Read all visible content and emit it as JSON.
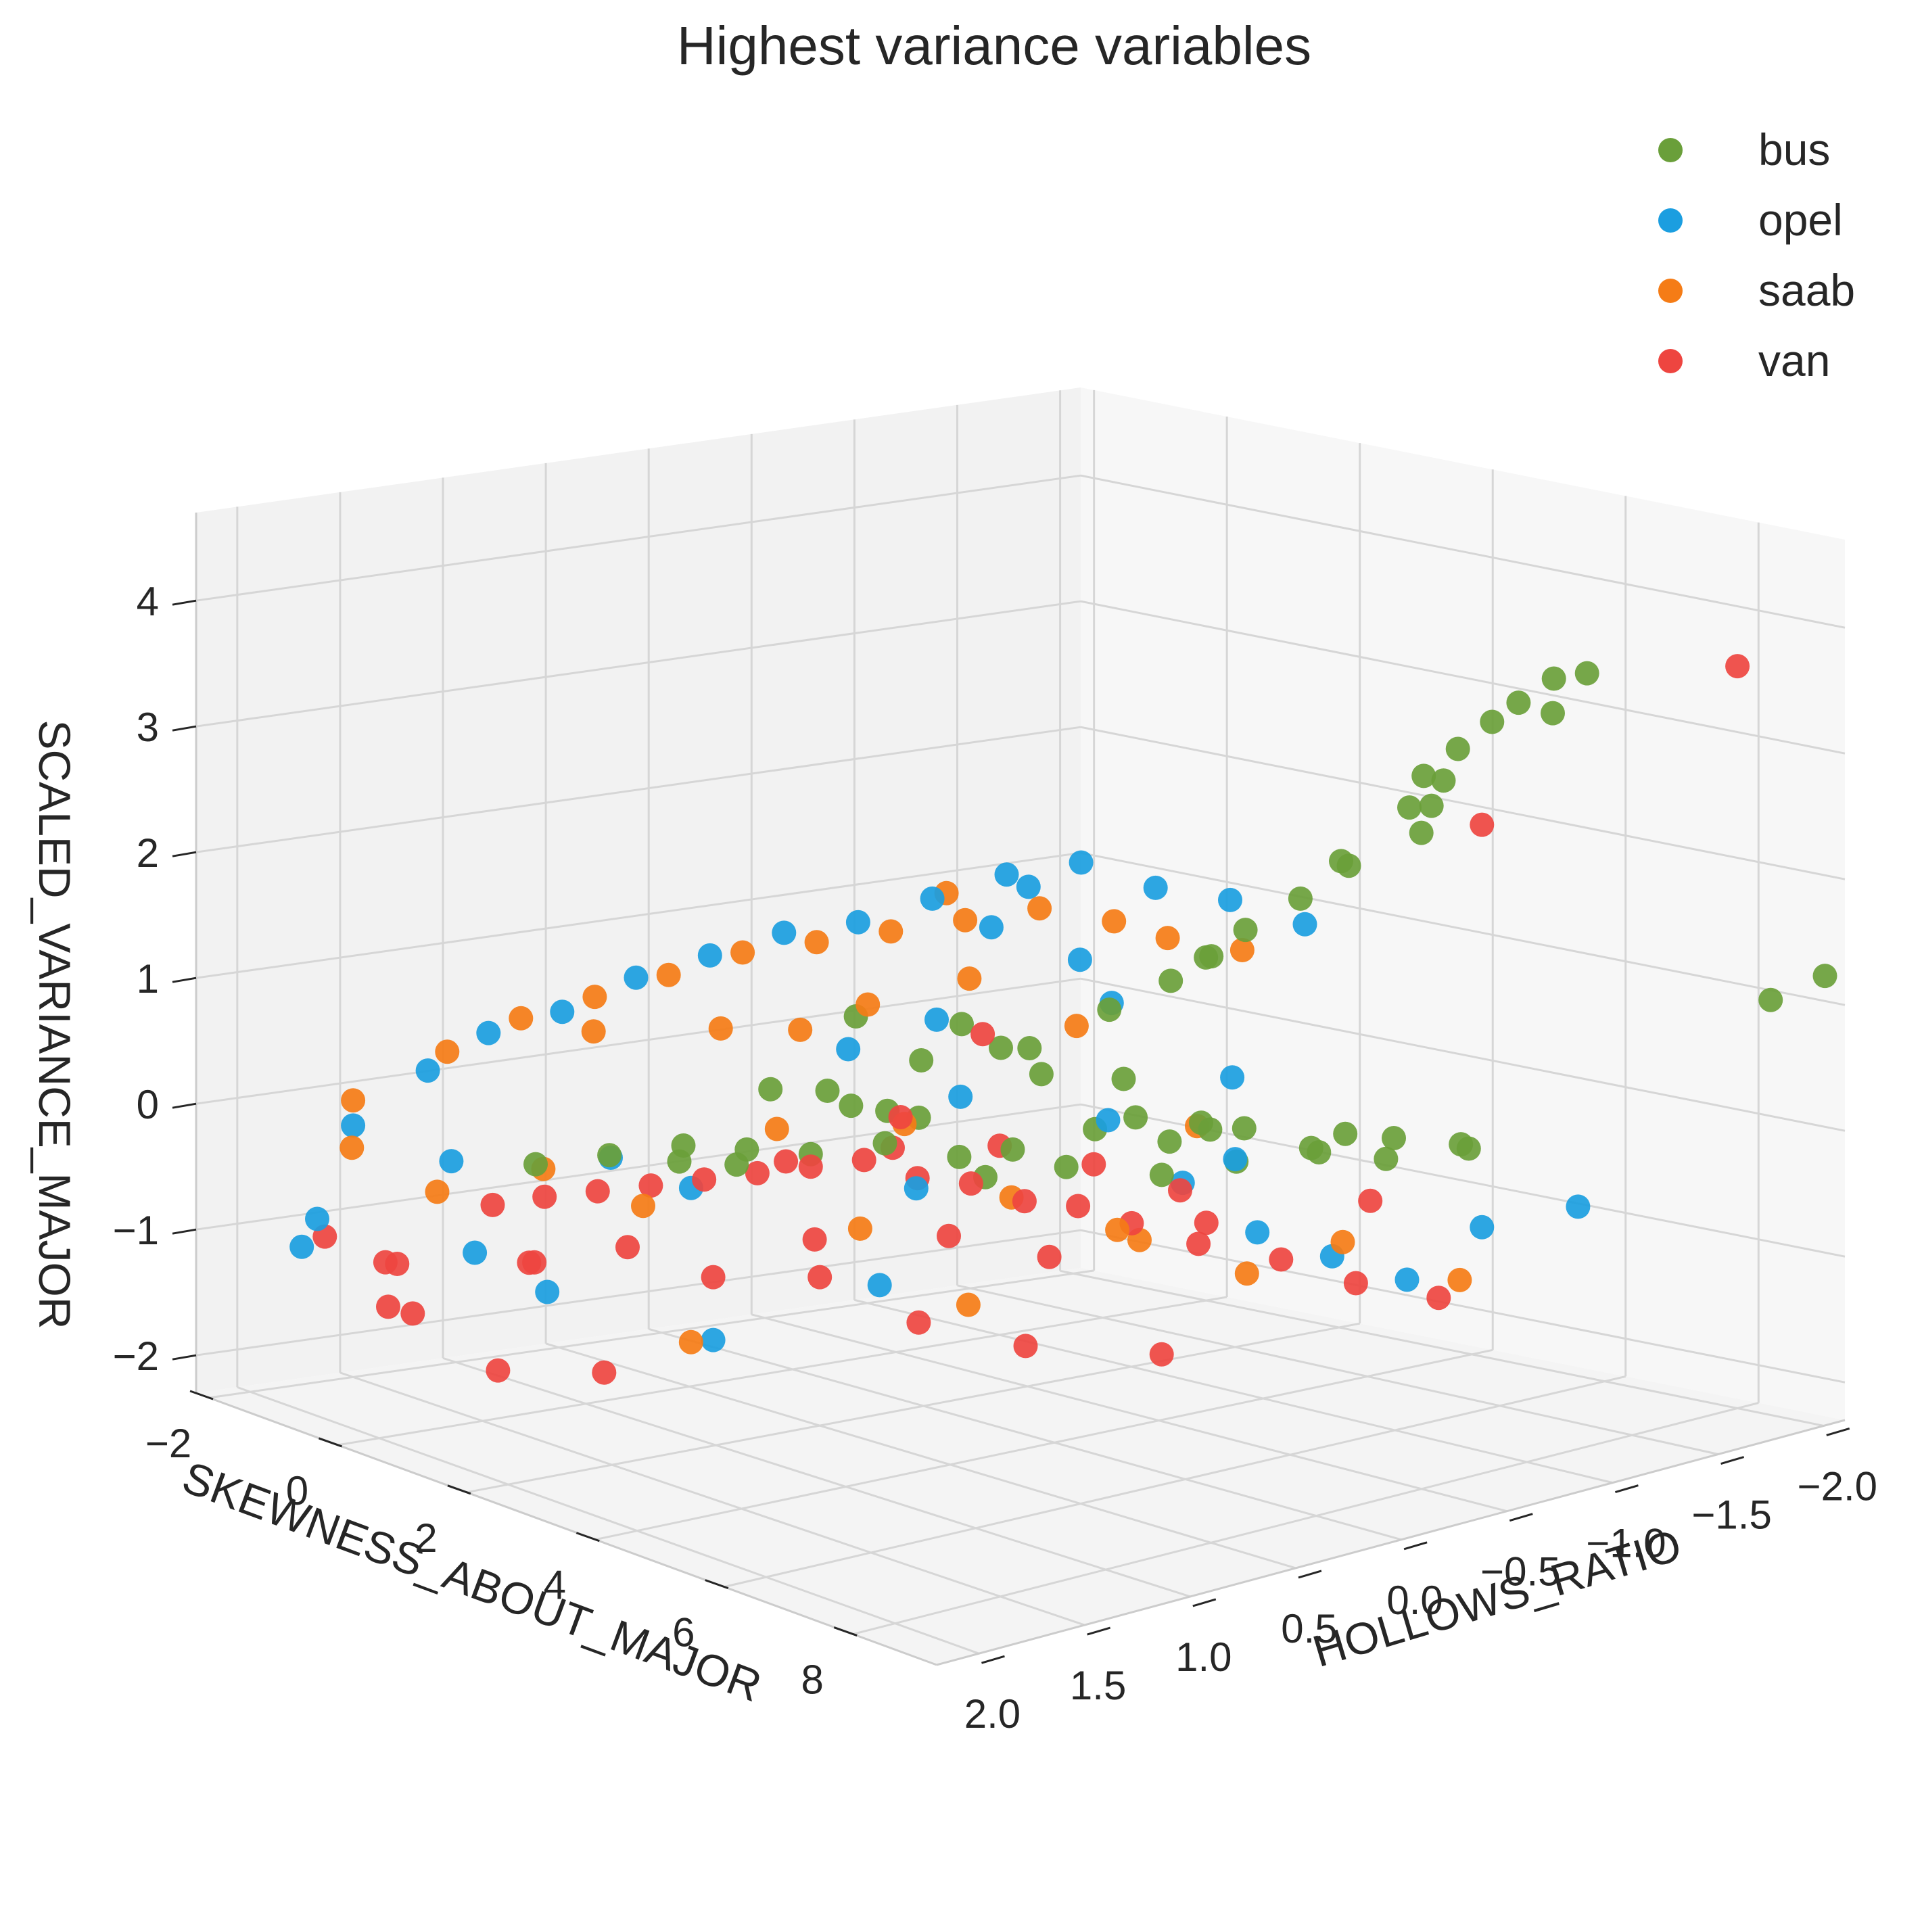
{
  "chart_data": {
    "type": "scatter",
    "projection": "3d",
    "title": "Highest variance variables",
    "xlabel": "SKEWNESS_ABOUT_MAJOR",
    "ylabel": "HOLLOWS_RATIO",
    "zlabel": "SCALED_VARIANCE_MAJOR",
    "xlim": [
      -2.2,
      9.3
    ],
    "ylim": [
      -2.1,
      2.2
    ],
    "zlim": [
      -2.3,
      4.7
    ],
    "xticks": [
      -2,
      0,
      2,
      4,
      6,
      8
    ],
    "xtick_labels": [
      "−2",
      "0",
      "2",
      "4",
      "6",
      "8"
    ],
    "yticks": [
      2.0,
      1.5,
      1.0,
      0.5,
      0.0,
      -0.5,
      -1.0,
      -1.5,
      -2.0
    ],
    "ytick_labels": [
      "2.0",
      "1.5",
      "1.0",
      "0.5",
      "0.0",
      "−0.5",
      "−1.0",
      "−1.5",
      "−2.0"
    ],
    "zticks": [
      -2,
      -1,
      0,
      1,
      2,
      3,
      4
    ],
    "ztick_labels": [
      "−2",
      "−1",
      "0",
      "1",
      "2",
      "3",
      "4"
    ],
    "legend_position": "top-right",
    "grid": true,
    "series": [
      {
        "name": "bus",
        "color": "#6a9f3a",
        "points": [
          [
            6.5,
            -1.6,
            3.5
          ],
          [
            6.8,
            -1.5,
            3.3
          ],
          [
            6.2,
            -1.4,
            3.2
          ],
          [
            6.0,
            -1.3,
            3.0
          ],
          [
            5.8,
            -1.2,
            2.8
          ],
          [
            6.4,
            -1.0,
            2.5
          ],
          [
            5.5,
            -0.9,
            2.2
          ],
          [
            5.9,
            -1.1,
            2.6
          ],
          [
            6.1,
            -1.2,
            2.8
          ],
          [
            5.2,
            -0.8,
            1.9
          ],
          [
            5.0,
            -0.6,
            1.7
          ],
          [
            4.8,
            -0.5,
            1.5
          ],
          [
            4.5,
            -0.4,
            1.3
          ],
          [
            4.4,
            -0.6,
            1.4
          ],
          [
            5.6,
            -1.3,
            2.5
          ],
          [
            5.3,
            -1.0,
            2.1
          ],
          [
            6.6,
            -1.4,
            3.4
          ],
          [
            7.0,
            -1.6,
            3.6
          ],
          [
            4.2,
            -0.2,
            1.1
          ],
          [
            8.5,
            -2.0,
            1.0
          ],
          [
            9.0,
            -2.1,
            1.2
          ],
          [
            4.0,
            0.2,
            0.1
          ],
          [
            4.5,
            0.1,
            0.0
          ],
          [
            5.0,
            -0.2,
            -0.1
          ],
          [
            5.5,
            -0.4,
            0.0
          ],
          [
            6.0,
            -0.6,
            0.1
          ],
          [
            6.5,
            -0.8,
            0.0
          ],
          [
            7.0,
            -1.0,
            0.1
          ],
          [
            4.3,
            -0.1,
            0.2
          ],
          [
            4.8,
            -0.3,
            0.1
          ],
          [
            5.3,
            -0.5,
            0.2
          ],
          [
            5.8,
            -0.7,
            0.0
          ],
          [
            6.3,
            -0.9,
            0.1
          ],
          [
            6.8,
            -1.1,
            0.0
          ],
          [
            3.5,
            0.3,
            0.0
          ],
          [
            3.0,
            0.5,
            0.1
          ],
          [
            2.5,
            0.7,
            0.0
          ],
          [
            2.0,
            0.9,
            -0.1
          ],
          [
            1.5,
            1.0,
            0.0
          ],
          [
            1.0,
            1.2,
            -0.1
          ],
          [
            0.5,
            1.4,
            -0.2
          ],
          [
            3.2,
            0.4,
            0.3
          ],
          [
            2.8,
            0.6,
            0.4
          ],
          [
            2.2,
            0.8,
            0.5
          ],
          [
            3.8,
            0.0,
            0.6
          ],
          [
            3.5,
            0.1,
            0.8
          ],
          [
            2.6,
            0.2,
            0.6
          ],
          [
            1.8,
            0.4,
            0.3
          ],
          [
            4.6,
            -0.2,
            0.3
          ],
          [
            5.1,
            -0.4,
            0.2
          ],
          [
            2.4,
            0.3,
            0.2
          ],
          [
            1.2,
            0.6,
            -0.2
          ],
          [
            0.8,
            0.8,
            -0.3
          ],
          [
            3.3,
            -0.1,
            0.7
          ],
          [
            4.1,
            -0.3,
            0.5
          ],
          [
            2.9,
            0.1,
            0.9
          ],
          [
            6.2,
            -0.7,
            0.2
          ],
          [
            5.6,
            -0.2,
            0.4
          ],
          [
            3.9,
            0.3,
            -0.1
          ],
          [
            1.6,
            0.2,
            0.8
          ]
        ]
      },
      {
        "name": "opel",
        "color": "#1b9ee0",
        "points": [
          [
            2.0,
            -0.4,
            1.8
          ],
          [
            2.5,
            -0.6,
            1.9
          ],
          [
            3.0,
            -0.8,
            1.7
          ],
          [
            1.5,
            -0.2,
            1.6
          ],
          [
            1.0,
            0.0,
            1.4
          ],
          [
            0.5,
            0.2,
            1.3
          ],
          [
            0.0,
            0.4,
            1.1
          ],
          [
            -0.5,
            0.6,
            0.9
          ],
          [
            -1.0,
            0.8,
            0.6
          ],
          [
            -1.5,
            1.0,
            0.4
          ],
          [
            -1.8,
            1.2,
            0.1
          ],
          [
            -2.0,
            1.5,
            -0.3
          ],
          [
            -1.6,
            1.8,
            -0.9
          ],
          [
            -1.2,
            2.0,
            -1.0
          ],
          [
            3.5,
            -1.0,
            1.6
          ],
          [
            4.0,
            -1.2,
            1.4
          ],
          [
            2.8,
            -0.5,
            1.2
          ],
          [
            2.2,
            0.0,
            0.8
          ],
          [
            1.8,
            0.3,
            0.6
          ],
          [
            3.2,
            0.2,
            0.4
          ],
          [
            4.5,
            -0.1,
            0.3
          ],
          [
            5.0,
            -0.3,
            -0.2
          ],
          [
            5.5,
            -0.5,
            -0.6
          ],
          [
            6.0,
            -0.7,
            -0.8
          ],
          [
            6.5,
            -0.9,
            -1.0
          ],
          [
            7.0,
            -1.1,
            -0.6
          ],
          [
            7.5,
            -1.4,
            -0.5
          ],
          [
            2.6,
            1.2,
            -1.3
          ],
          [
            1.3,
            0.9,
            -0.4
          ],
          [
            0.7,
            1.1,
            -0.2
          ],
          [
            3.8,
            0.6,
            -0.1
          ],
          [
            4.2,
            0.9,
            -0.7
          ],
          [
            1.0,
            1.5,
            -1.1
          ],
          [
            0.2,
            1.6,
            -0.9
          ],
          [
            -0.8,
            1.4,
            -0.4
          ],
          [
            2.4,
            -0.2,
            1.5
          ],
          [
            3.6,
            -0.4,
            1.0
          ],
          [
            1.7,
            -0.6,
            1.6
          ],
          [
            4.8,
            -0.6,
            0.5
          ],
          [
            5.8,
            -0.3,
            0.1
          ]
        ]
      },
      {
        "name": "saab",
        "color": "#f57c16",
        "points": [
          [
            2.0,
            -0.2,
            1.5
          ],
          [
            2.5,
            -0.4,
            1.6
          ],
          [
            3.0,
            -0.6,
            1.5
          ],
          [
            1.5,
            0.0,
            1.4
          ],
          [
            1.0,
            0.2,
            1.3
          ],
          [
            0.5,
            0.4,
            1.2
          ],
          [
            0.0,
            0.6,
            1.0
          ],
          [
            -0.5,
            0.8,
            0.8
          ],
          [
            -1.0,
            1.0,
            0.6
          ],
          [
            -1.5,
            1.2,
            0.3
          ],
          [
            -2.0,
            1.5,
            -0.1
          ],
          [
            -1.7,
            1.6,
            -0.4
          ],
          [
            3.5,
            -0.7,
            1.4
          ],
          [
            4.0,
            -0.9,
            1.3
          ],
          [
            2.7,
            0.0,
            1.2
          ],
          [
            1.7,
            0.5,
            0.8
          ],
          [
            2.3,
            0.8,
            0.2
          ],
          [
            3.3,
            0.5,
            0.3
          ],
          [
            4.3,
            0.3,
            -0.2
          ],
          [
            5.3,
            0.0,
            -0.5
          ],
          [
            6.3,
            -0.2,
            -0.7
          ],
          [
            7.3,
            -0.9,
            -0.9
          ],
          [
            1.2,
            1.1,
            -0.5
          ],
          [
            0.3,
            1.3,
            -0.3
          ],
          [
            -0.7,
            1.5,
            -0.6
          ],
          [
            2.9,
            1.4,
            -1.2
          ],
          [
            3.9,
            0.9,
            -0.3
          ],
          [
            4.6,
            0.6,
            -0.9
          ],
          [
            5.6,
            0.2,
            -0.3
          ],
          [
            6.8,
            -0.5,
            -0.5
          ],
          [
            2.1,
            0.3,
            1.0
          ],
          [
            1.4,
            -0.3,
            1.6
          ],
          [
            3.7,
            -0.2,
            0.9
          ],
          [
            0.8,
            0.6,
            0.7
          ],
          [
            -0.2,
            0.9,
            0.6
          ],
          [
            4.9,
            -0.4,
            0.2
          ]
        ]
      },
      {
        "name": "van",
        "color": "#ee4540",
        "points": [
          [
            8.0,
            -2.0,
            3.6
          ],
          [
            7.0,
            -1.1,
            2.6
          ],
          [
            4.5,
            0.5,
            1.2
          ],
          [
            4.2,
            0.8,
            0.6
          ],
          [
            0.0,
            1.2,
            -0.6
          ],
          [
            0.5,
            1.1,
            -0.5
          ],
          [
            1.0,
            1.0,
            -0.4
          ],
          [
            1.5,
            0.9,
            -0.3
          ],
          [
            2.0,
            0.8,
            -0.2
          ],
          [
            2.5,
            0.7,
            -0.1
          ],
          [
            3.0,
            0.6,
            0.0
          ],
          [
            3.5,
            0.5,
            -0.1
          ],
          [
            4.0,
            0.4,
            -0.1
          ],
          [
            4.5,
            0.3,
            -0.2
          ],
          [
            5.0,
            0.2,
            -0.2
          ],
          [
            5.5,
            0.1,
            -0.3
          ],
          [
            6.0,
            -0.1,
            -0.3
          ],
          [
            6.5,
            -0.3,
            -0.6
          ],
          [
            7.0,
            -0.5,
            -0.8
          ],
          [
            7.3,
            -0.8,
            -1.0
          ],
          [
            -1.5,
            1.5,
            -1.3
          ],
          [
            -1.0,
            1.6,
            -1.2
          ],
          [
            -0.5,
            1.8,
            -1.4
          ],
          [
            0.2,
            1.9,
            -1.3
          ],
          [
            -1.8,
            1.7,
            -1.1
          ],
          [
            0.8,
            1.5,
            -0.9
          ],
          [
            1.6,
            1.3,
            -0.7
          ],
          [
            2.6,
            1.2,
            -0.8
          ],
          [
            3.6,
            1.0,
            -0.7
          ],
          [
            4.8,
            0.9,
            -0.9
          ],
          [
            5.8,
            0.7,
            -1.0
          ],
          [
            6.6,
            0.3,
            -1.1
          ],
          [
            2.2,
            1.6,
            -1.5
          ],
          [
            1.2,
            1.8,
            -1.6
          ],
          [
            3.2,
            0.9,
            -0.5
          ],
          [
            4.3,
            0.6,
            -0.4
          ],
          [
            5.2,
            0.4,
            -0.5
          ],
          [
            6.2,
            0.0,
            -0.4
          ],
          [
            0.4,
            1.4,
            -1.0
          ],
          [
            -0.8,
            1.2,
            -0.8
          ],
          [
            3.8,
            0.2,
            0.1
          ],
          [
            2.8,
            0.4,
            0.0
          ],
          [
            5.6,
            -0.1,
            -0.1
          ],
          [
            1.8,
            0.6,
            -0.2
          ],
          [
            4.6,
            0.0,
            0.0
          ],
          [
            6.9,
            -0.6,
            -0.2
          ]
        ]
      }
    ]
  }
}
